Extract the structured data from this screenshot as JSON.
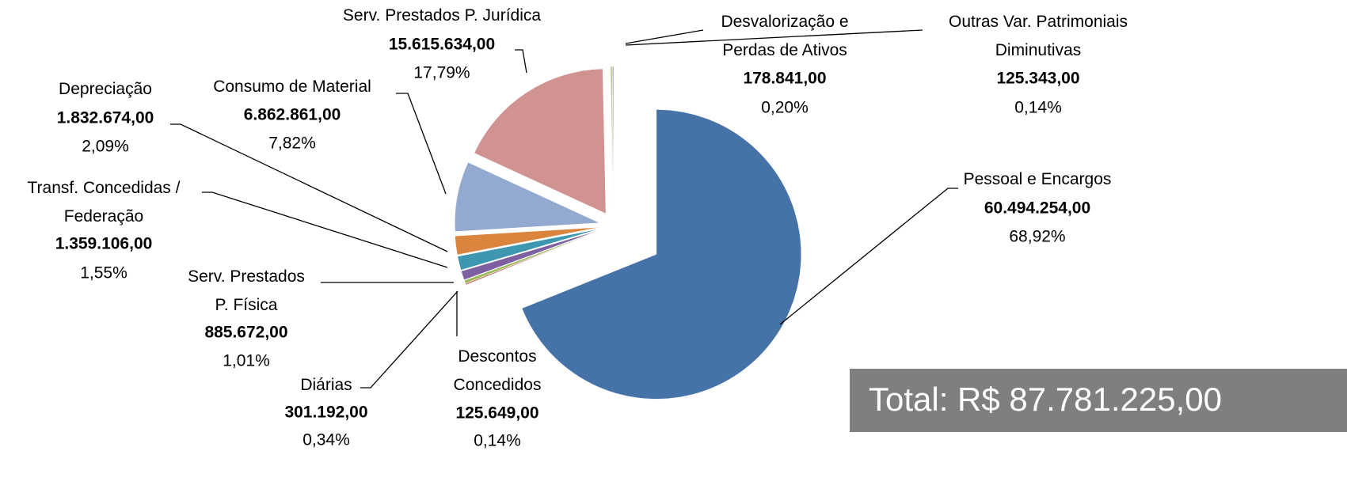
{
  "chart_data": {
    "type": "pie",
    "categories": [
      "Pessoal e Encargos",
      "Descontos\nConcedidos",
      "Diárias",
      "Serv. Prestados\nP. Física",
      "Transf. Concedidas /\nFederação",
      "Depreciação",
      "Consumo de Material",
      "Serv. Prestados P. Jurídica",
      "Desvalorização e\nPerdas de Ativos",
      "Outras Var. Patrimoniais\nDiminutivas"
    ],
    "values": [
      60494254,
      125649,
      301192,
      885672,
      1359106,
      1832674,
      6862861,
      15615634,
      178841,
      125343
    ],
    "value_labels": [
      "60.494.254,00",
      "125.649,00",
      "301.192,00",
      "885.672,00",
      "1.359.106,00",
      "1.832.674,00",
      "6.862.861,00",
      "15.615.634,00",
      "178.841,00",
      "125.343,00"
    ],
    "percents": [
      68.92,
      0.14,
      0.34,
      1.01,
      1.55,
      2.09,
      7.82,
      17.79,
      0.2,
      0.14
    ],
    "percent_labels": [
      "68,92%",
      "0,14%",
      "0,34%",
      "1,01%",
      "1,55%",
      "2,09%",
      "7,82%",
      "17,79%",
      "0,20%",
      "0,14%"
    ],
    "colors": [
      "#4572a7",
      "#c0504d",
      "#9bbb59",
      "#7e60a0",
      "#3d97b0",
      "#db843d",
      "#93a9cf",
      "#d09392",
      "#b9cd96",
      "#a99bbd"
    ],
    "total": "Total: R$ 87.781.225,00"
  }
}
